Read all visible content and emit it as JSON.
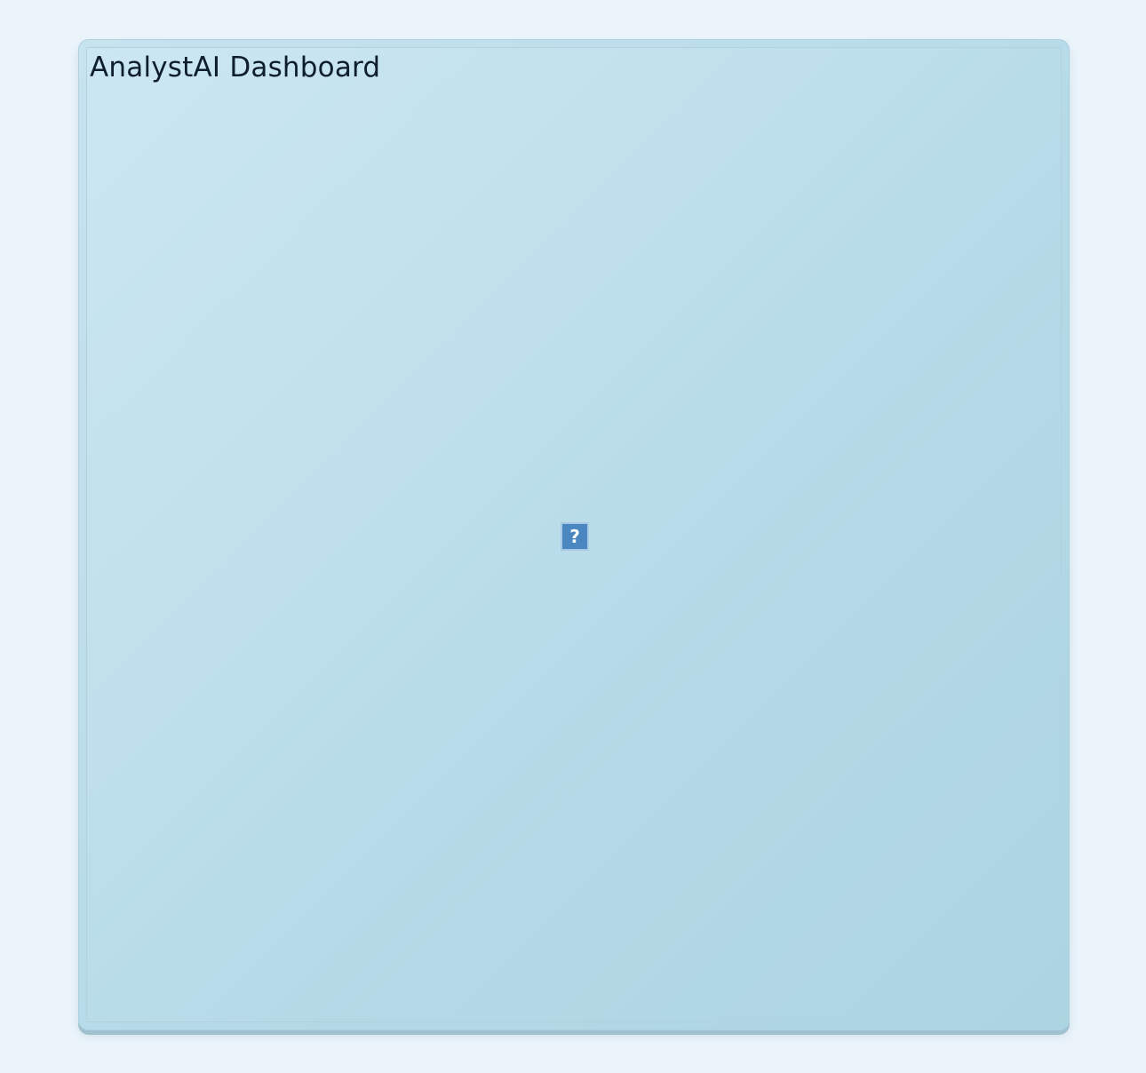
{
  "dashboard": {
    "title": "AnalystAI Dashboard"
  },
  "placeholder": {
    "icon": "missing-content-icon",
    "glyph": "?"
  },
  "colors": {
    "page_background": "#ebf4fb",
    "panel_background": "#bfe0eb",
    "placeholder_fill": "#4a87c0",
    "title_text": "#0f1e2f"
  }
}
